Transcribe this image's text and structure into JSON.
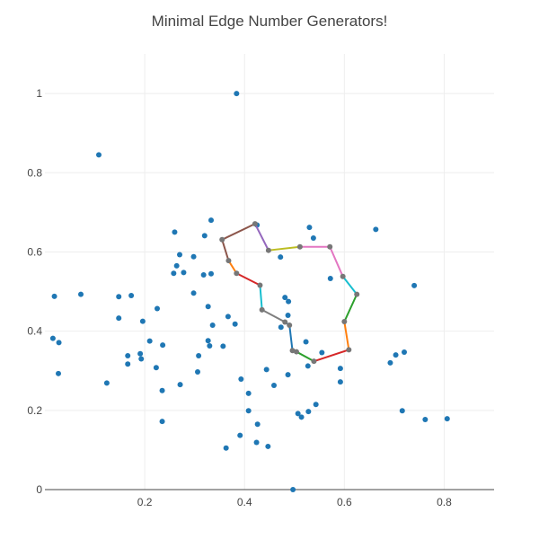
{
  "chart_data": {
    "type": "scatter",
    "title": "Minimal Edge Number Generators!",
    "xlabel": "",
    "ylabel": "",
    "xlim": [
      0.0,
      0.9
    ],
    "ylim": [
      0.0,
      1.1
    ],
    "x_ticks": [
      0.2,
      0.4,
      0.6,
      0.8
    ],
    "x_tick_labels": [
      "0.2",
      "0.4",
      "0.6",
      "0.8"
    ],
    "y_ticks": [
      0,
      0.2,
      0.4,
      0.6,
      0.8,
      1
    ],
    "y_tick_labels": [
      "0",
      "0.2",
      "0.4",
      "0.6",
      "0.8",
      "1"
    ],
    "grid": true,
    "marker_color": "#1f77b4",
    "points": [
      [
        0.384,
        1.0
      ],
      [
        0.108,
        0.845
      ],
      [
        0.333,
        0.68
      ],
      [
        0.425,
        0.668
      ],
      [
        0.26,
        0.65
      ],
      [
        0.32,
        0.641
      ],
      [
        0.53,
        0.662
      ],
      [
        0.538,
        0.635
      ],
      [
        0.663,
        0.657
      ],
      [
        0.27,
        0.593
      ],
      [
        0.298,
        0.588
      ],
      [
        0.472,
        0.587
      ],
      [
        0.264,
        0.565
      ],
      [
        0.278,
        0.548
      ],
      [
        0.258,
        0.546
      ],
      [
        0.333,
        0.545
      ],
      [
        0.318,
        0.542
      ],
      [
        0.572,
        0.533
      ],
      [
        0.74,
        0.515
      ],
      [
        0.298,
        0.496
      ],
      [
        0.072,
        0.493
      ],
      [
        0.019,
        0.488
      ],
      [
        0.148,
        0.487
      ],
      [
        0.173,
        0.49
      ],
      [
        0.481,
        0.485
      ],
      [
        0.488,
        0.475
      ],
      [
        0.327,
        0.462
      ],
      [
        0.225,
        0.457
      ],
      [
        0.148,
        0.433
      ],
      [
        0.367,
        0.437
      ],
      [
        0.487,
        0.44
      ],
      [
        0.196,
        0.425
      ],
      [
        0.336,
        0.415
      ],
      [
        0.381,
        0.418
      ],
      [
        0.473,
        0.41
      ],
      [
        0.016,
        0.382
      ],
      [
        0.028,
        0.371
      ],
      [
        0.21,
        0.375
      ],
      [
        0.236,
        0.365
      ],
      [
        0.327,
        0.376
      ],
      [
        0.33,
        0.363
      ],
      [
        0.357,
        0.362
      ],
      [
        0.523,
        0.373
      ],
      [
        0.166,
        0.338
      ],
      [
        0.191,
        0.343
      ],
      [
        0.166,
        0.317
      ],
      [
        0.193,
        0.33
      ],
      [
        0.308,
        0.338
      ],
      [
        0.223,
        0.308
      ],
      [
        0.306,
        0.297
      ],
      [
        0.444,
        0.303
      ],
      [
        0.592,
        0.306
      ],
      [
        0.555,
        0.346
      ],
      [
        0.487,
        0.29
      ],
      [
        0.527,
        0.312
      ],
      [
        0.703,
        0.34
      ],
      [
        0.72,
        0.347
      ],
      [
        0.692,
        0.32
      ],
      [
        0.027,
        0.293
      ],
      [
        0.124,
        0.269
      ],
      [
        0.271,
        0.265
      ],
      [
        0.393,
        0.279
      ],
      [
        0.459,
        0.263
      ],
      [
        0.592,
        0.272
      ],
      [
        0.235,
        0.25
      ],
      [
        0.408,
        0.243
      ],
      [
        0.543,
        0.215
      ],
      [
        0.528,
        0.197
      ],
      [
        0.408,
        0.199
      ],
      [
        0.507,
        0.192
      ],
      [
        0.514,
        0.183
      ],
      [
        0.716,
        0.199
      ],
      [
        0.762,
        0.177
      ],
      [
        0.806,
        0.179
      ],
      [
        0.235,
        0.172
      ],
      [
        0.426,
        0.165
      ],
      [
        0.391,
        0.137
      ],
      [
        0.424,
        0.119
      ],
      [
        0.447,
        0.109
      ],
      [
        0.363,
        0.105
      ],
      [
        0.497,
        0.0
      ]
    ],
    "path_node_color": "#777777",
    "path": [
      [
        0.421,
        0.671
      ],
      [
        0.448,
        0.604
      ],
      [
        0.511,
        0.613
      ],
      [
        0.571,
        0.613
      ],
      [
        0.597,
        0.538
      ],
      [
        0.625,
        0.493
      ],
      [
        0.6,
        0.424
      ],
      [
        0.609,
        0.353
      ],
      [
        0.539,
        0.324
      ],
      [
        0.504,
        0.348
      ],
      [
        0.496,
        0.351
      ],
      [
        0.49,
        0.415
      ],
      [
        0.481,
        0.423
      ],
      [
        0.435,
        0.454
      ],
      [
        0.431,
        0.516
      ],
      [
        0.384,
        0.546
      ],
      [
        0.368,
        0.578
      ],
      [
        0.355,
        0.631
      ],
      [
        0.421,
        0.671
      ]
    ],
    "path_colors": [
      "#9467bd",
      "#bcbd22",
      "#e377c2",
      "#e377c2",
      "#17becf",
      "#2ca02c",
      "#ff7f0e",
      "#d62728",
      "#2ca02c",
      "#1f77b4",
      "#1f77b4",
      "#1f77b4",
      "#7f7f7f",
      "#17becf",
      "#d62728",
      "#ff7f0e",
      "#8c564b",
      "#8c564b"
    ]
  }
}
